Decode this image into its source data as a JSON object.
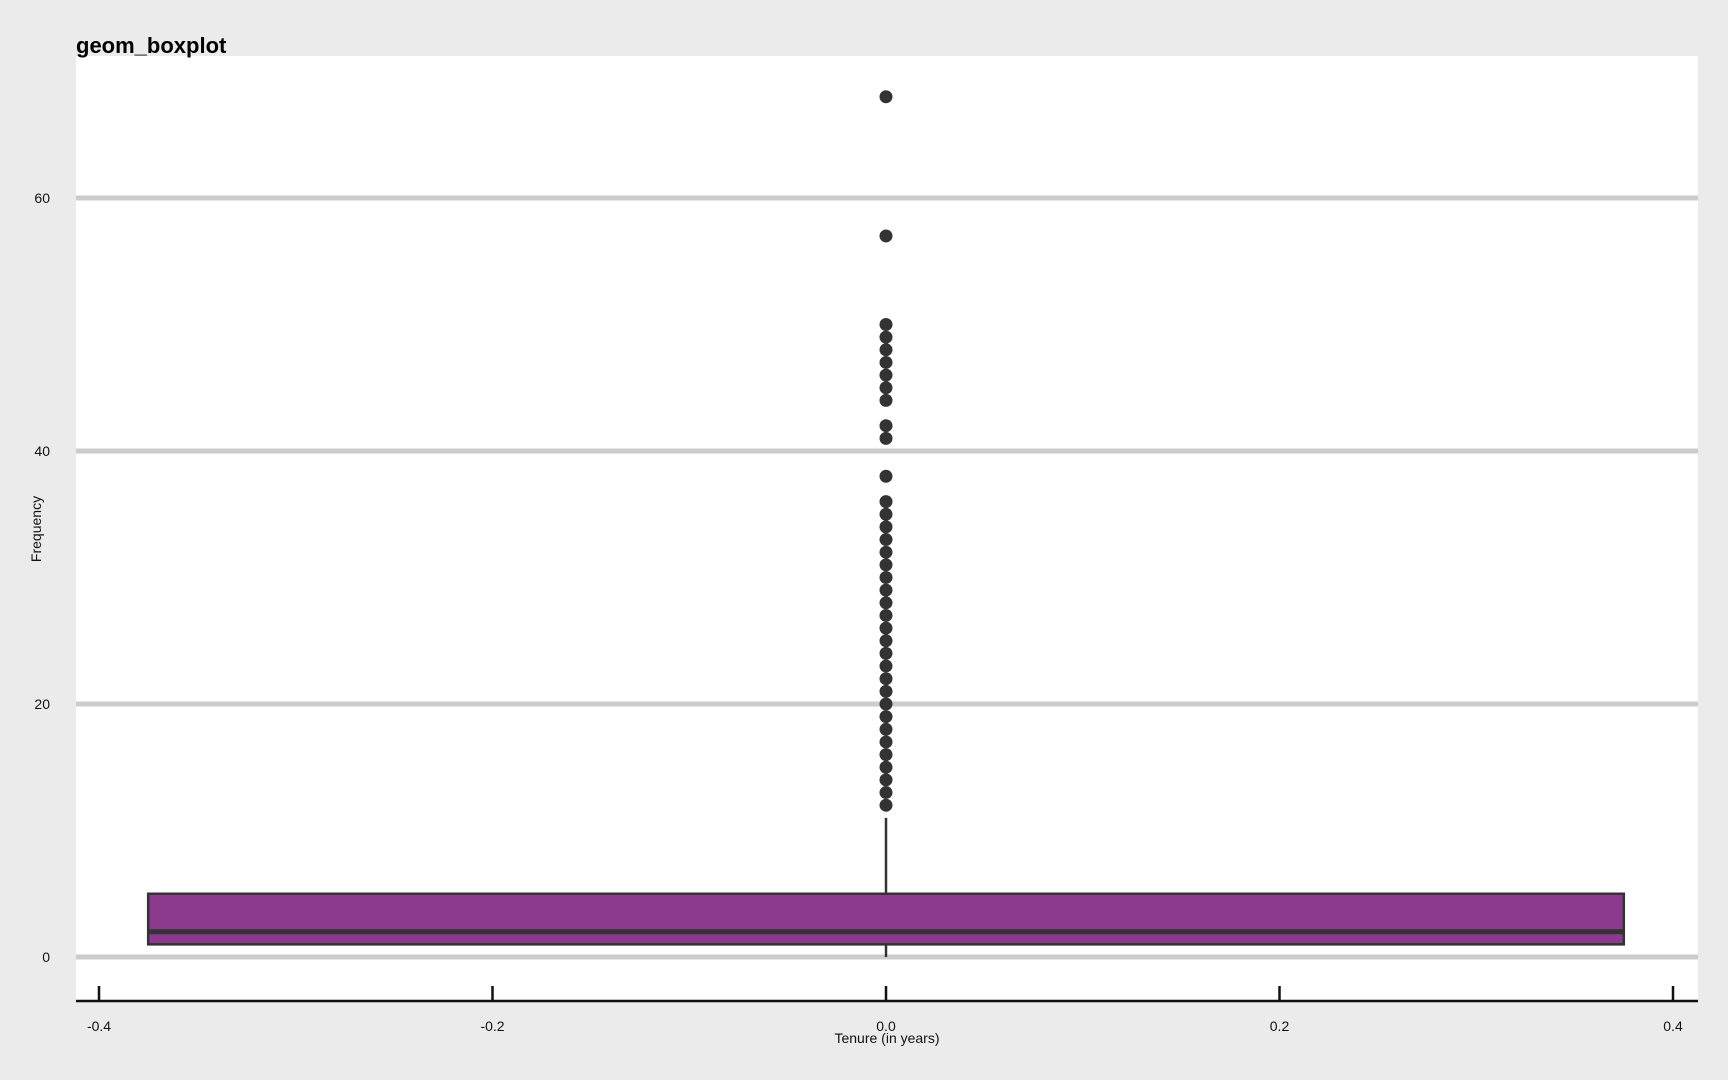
{
  "chart_data": {
    "type": "boxplot",
    "title": "geom_boxplot",
    "xlabel": "Tenure (in years)",
    "ylabel": "Frequency",
    "xlim": [
      -0.4,
      0.4
    ],
    "ylim": [
      0,
      70
    ],
    "x_ticks": [
      "-0.4",
      "-0.2",
      "0.0",
      "0.2",
      "0.4"
    ],
    "x_tick_values": [
      -0.4,
      -0.2,
      0.0,
      0.2,
      0.4
    ],
    "y_ticks": [
      "0",
      "20",
      "40",
      "60"
    ],
    "y_tick_values": [
      0,
      20,
      40,
      60
    ],
    "grid": "horizontal major",
    "box": {
      "x_center": 0.0,
      "x_range": [
        -0.375,
        0.375
      ],
      "whisker_low": 0,
      "q1": 1,
      "median": 2,
      "q3": 5,
      "whisker_high": 11
    },
    "outliers": [
      12,
      13,
      14,
      15,
      16,
      17,
      18,
      19,
      20,
      21,
      22,
      23,
      24,
      25,
      26,
      27,
      28,
      29,
      30,
      31,
      32,
      33,
      34,
      35,
      36,
      38,
      41,
      42,
      44,
      45,
      46,
      47,
      48,
      49,
      50,
      57,
      68
    ],
    "colors": {
      "background": "#ebebeb",
      "panel": "#ffffff",
      "grid": "#cccccc",
      "box_fill": "#8b3a8d",
      "box_outline": "#333333",
      "points": "#333333",
      "axis": "#111111"
    }
  }
}
